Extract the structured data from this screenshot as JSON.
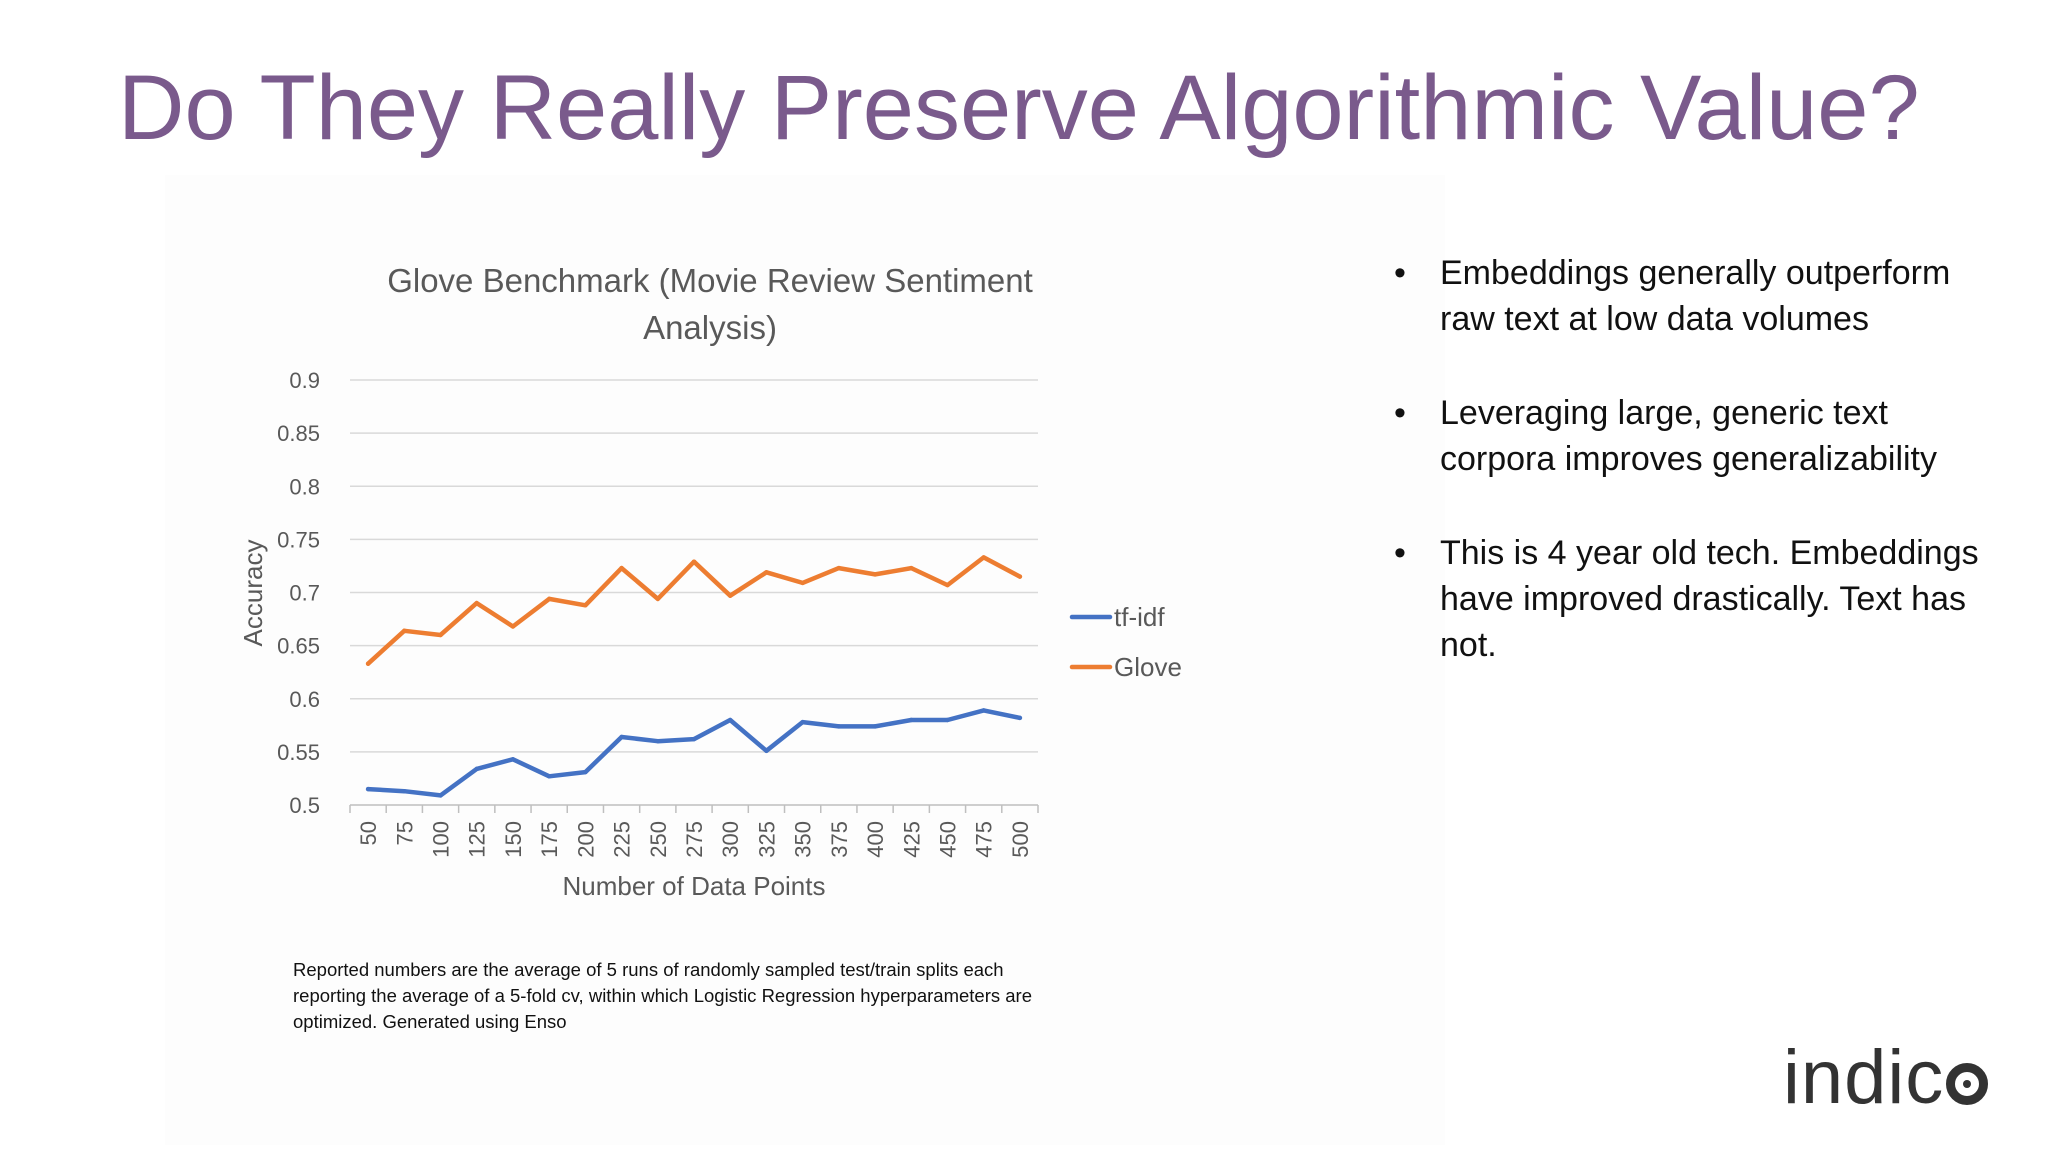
{
  "slide": {
    "title": "Do They Really Preserve Algorithmic Value?",
    "footnote": "Reported numbers are the average of 5 runs of randomly sampled test/train splits each reporting the average of a 5-fold cv, within which Logistic Regression hyperparameters are optimized. Generated using Enso",
    "bullets": [
      "Embeddings generally outperform raw text at low data volumes",
      "Leveraging large, generic text corpora improves generalizability",
      "This is 4 year old tech. Embeddings have improved drastically. Text has not."
    ],
    "bullet_glyph": "•",
    "logo": {
      "text": "indic",
      "icon": "logo-o-icon"
    }
  },
  "chart_data": {
    "type": "line",
    "title": "Glove Benchmark (Movie Review Sentiment Analysis)",
    "title_lines": [
      "Glove Benchmark (Movie Review Sentiment",
      "Analysis)"
    ],
    "xlabel": "Number of Data Points",
    "ylabel": "Accuracy",
    "x": [
      "50",
      "75",
      "100",
      "125",
      "150",
      "175",
      "200",
      "225",
      "250",
      "275",
      "300",
      "325",
      "350",
      "375",
      "400",
      "425",
      "450",
      "475",
      "500"
    ],
    "y_ticks": [
      "0.5",
      "0.55",
      "0.6",
      "0.65",
      "0.7",
      "0.75",
      "0.8",
      "0.85",
      "0.9"
    ],
    "ylim": [
      0.5,
      0.9
    ],
    "grid": true,
    "legend": "right",
    "series": [
      {
        "name": "tf-idf",
        "color": "#4472c4",
        "values": [
          0.515,
          0.513,
          0.509,
          0.534,
          0.543,
          0.527,
          0.531,
          0.564,
          0.56,
          0.562,
          0.58,
          0.551,
          0.578,
          0.574,
          0.574,
          0.58,
          0.58,
          0.589,
          0.582
        ]
      },
      {
        "name": "Glove",
        "color": "#ed7d31",
        "values": [
          0.633,
          0.664,
          0.66,
          0.69,
          0.668,
          0.694,
          0.688,
          0.723,
          0.694,
          0.729,
          0.697,
          0.719,
          0.709,
          0.723,
          0.717,
          0.723,
          0.707,
          0.733,
          0.715
        ]
      }
    ]
  }
}
